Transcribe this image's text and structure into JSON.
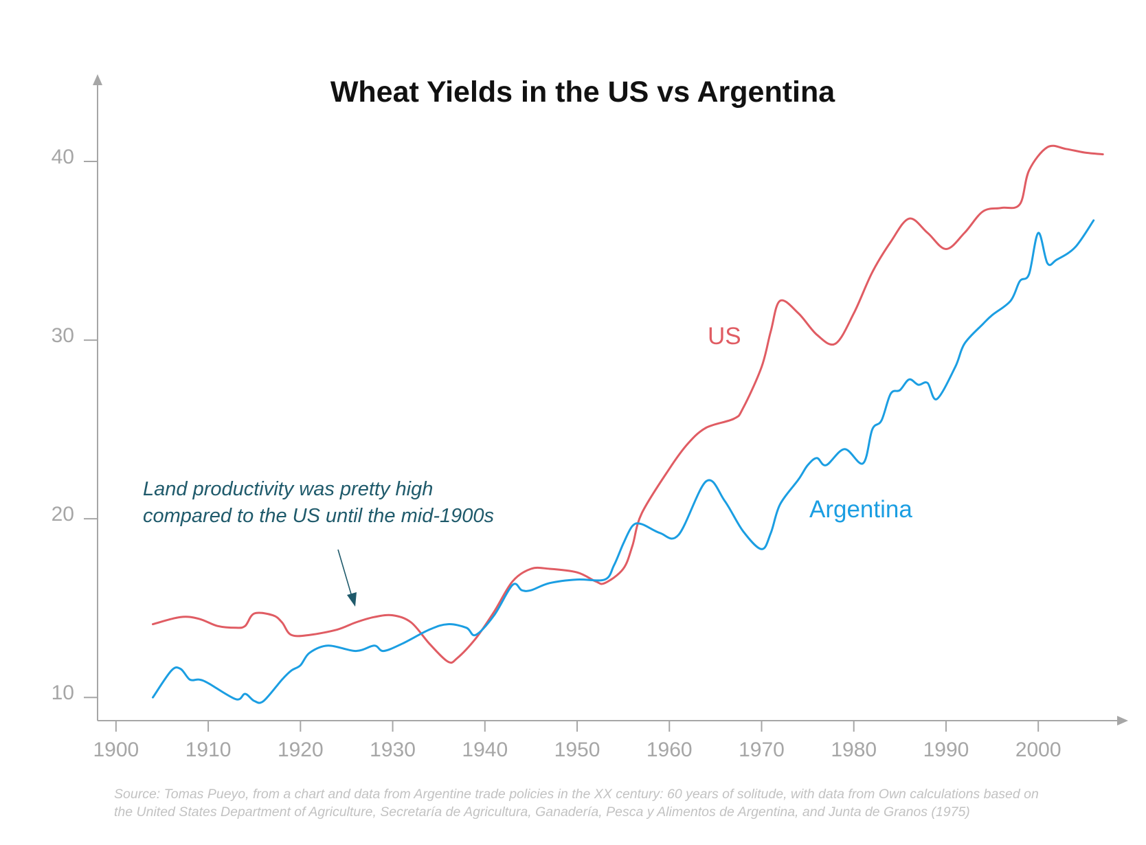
{
  "chart_data": {
    "type": "line",
    "title": "Wheat Yields in the US vs Argentina",
    "xlabel": "",
    "ylabel": "",
    "xlim": [
      1898,
      2009
    ],
    "ylim": [
      8.7,
      44.5
    ],
    "x_ticks": [
      "1900",
      "1910",
      "1920",
      "1930",
      "1940",
      "1950",
      "1960",
      "1970",
      "1980",
      "1990",
      "2000"
    ],
    "y_ticks": [
      "10",
      "20",
      "30",
      "40"
    ],
    "grid": false,
    "legend": "inline labels",
    "series": [
      {
        "name": "US",
        "color": "#e05c63",
        "x": [
          1904,
          1907,
          1909,
          1911,
          1913,
          1914,
          1915,
          1917,
          1918,
          1919,
          1921,
          1924,
          1926,
          1928,
          1930,
          1932,
          1934,
          1936,
          1937,
          1939,
          1941,
          1943,
          1945,
          1947,
          1950,
          1952,
          1953,
          1955,
          1956,
          1957,
          1960,
          1962,
          1964,
          1967,
          1968,
          1970,
          1971,
          1972,
          1974,
          1976,
          1978,
          1980,
          1982,
          1984,
          1986,
          1988,
          1990,
          1992,
          1994,
          1996,
          1998,
          1999,
          2001,
          2003,
          2005,
          2007
        ],
        "values": [
          14.1,
          14.5,
          14.4,
          14.0,
          13.9,
          14.0,
          14.7,
          14.6,
          14.2,
          13.5,
          13.5,
          13.8,
          14.2,
          14.5,
          14.6,
          14.2,
          13.0,
          12.0,
          12.2,
          13.3,
          14.8,
          16.5,
          17.2,
          17.2,
          17.0,
          16.5,
          16.4,
          17.2,
          18.5,
          20.3,
          22.8,
          24.2,
          25.1,
          25.6,
          26.2,
          28.5,
          30.5,
          32.2,
          31.5,
          30.3,
          29.8,
          31.5,
          33.8,
          35.5,
          36.8,
          36.0,
          35.1,
          36.0,
          37.2,
          37.4,
          37.6,
          39.5,
          40.8,
          40.7,
          40.5,
          40.4
        ]
      },
      {
        "name": "Argentina",
        "color": "#1b9ee2",
        "x": [
          1904,
          1906,
          1907,
          1908,
          1909,
          1910,
          1913,
          1914,
          1915,
          1916,
          1918,
          1919,
          1920,
          1921,
          1923,
          1926,
          1928,
          1929,
          1931,
          1934,
          1936,
          1938,
          1939,
          1941,
          1943,
          1944,
          1945,
          1947,
          1950,
          1953,
          1954,
          1955,
          1956,
          1957,
          1959,
          1961,
          1964,
          1966,
          1968,
          1970,
          1971,
          1972,
          1974,
          1975,
          1976,
          1977,
          1979,
          1981,
          1982,
          1983,
          1984,
          1985,
          1986,
          1987,
          1988,
          1989,
          1991,
          1992,
          1994,
          1995,
          1997,
          1998,
          1999,
          2000,
          2001,
          2002,
          2004,
          2006
        ],
        "values": [
          10.0,
          11.5,
          11.6,
          11.0,
          11.0,
          10.8,
          9.9,
          10.2,
          9.8,
          9.8,
          11.0,
          11.5,
          11.8,
          12.5,
          12.9,
          12.6,
          12.9,
          12.6,
          13.0,
          13.8,
          14.1,
          13.9,
          13.5,
          14.6,
          16.3,
          16.0,
          16.0,
          16.4,
          16.6,
          16.6,
          17.4,
          18.6,
          19.6,
          19.7,
          19.2,
          19.1,
          22.1,
          21.0,
          19.3,
          18.3,
          19.2,
          20.8,
          22.2,
          23.0,
          23.4,
          23.0,
          23.9,
          23.1,
          25.0,
          25.5,
          27.0,
          27.2,
          27.8,
          27.5,
          27.6,
          26.7,
          28.5,
          29.8,
          30.9,
          31.4,
          32.2,
          33.3,
          33.7,
          36.0,
          34.3,
          34.5,
          35.2,
          36.7
        ]
      }
    ],
    "labels": {
      "us": "US",
      "argentina": "Argentina"
    },
    "annotation": {
      "line1": "Land productivity was pretty high",
      "line2": "compared to the US until the mid-1900s"
    },
    "source": {
      "line1": "Source: Tomas Pueyo, from a chart and data from Argentine trade policies in the XX century: 60 years of solitude, with data from Own calculations based on",
      "line2": "the United States Department of Agriculture, Secretaría de Agricultura, Ganadería, Pesca y Alimentos de Argentina, and Junta de Granos (1975)"
    },
    "colors": {
      "axis": "#a6a6a6",
      "annotation": "#1f5a6b",
      "us": "#e05c63",
      "argentina": "#1b9ee2"
    }
  }
}
